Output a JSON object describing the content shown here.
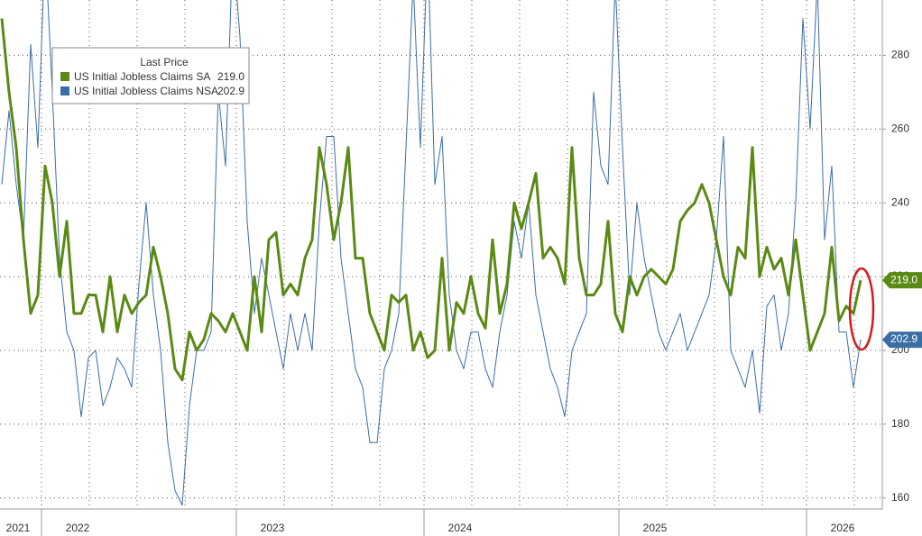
{
  "chart_data": {
    "type": "line",
    "legend_title": "Last Price",
    "categories": [
      "2021",
      null,
      null,
      null,
      null,
      null,
      "2022",
      null,
      null,
      null,
      null,
      null,
      null,
      null,
      null,
      null,
      null,
      null,
      null,
      null,
      null,
      null,
      null,
      null,
      null,
      null,
      null,
      null,
      null,
      null,
      null,
      null,
      null,
      "2023",
      null,
      null,
      null,
      null,
      null,
      null,
      null,
      null,
      null,
      null,
      null,
      null,
      null,
      null,
      null,
      null,
      null,
      null,
      null,
      null,
      null,
      null,
      null,
      null,
      null,
      "2024",
      null,
      null,
      null,
      null,
      null,
      null,
      null,
      null,
      null,
      null,
      null,
      null,
      null,
      null,
      null,
      null,
      null,
      null,
      null,
      null,
      null,
      null,
      null,
      null,
      null,
      null,
      "2025",
      null,
      null,
      null,
      null,
      null,
      null,
      null,
      null,
      null,
      null,
      null,
      null,
      null,
      null,
      null,
      null,
      null,
      null,
      null,
      null,
      null,
      null,
      null,
      null,
      null,
      "2026",
      null,
      null,
      null,
      null,
      null,
      null,
      null
    ],
    "series": [
      {
        "name": "US Initial Jobless Claims SA",
        "color": "#5a8a14",
        "last_value_label": "219.0",
        "values": [
          290,
          270,
          255,
          230,
          210,
          215,
          250,
          240,
          220,
          235,
          210,
          210,
          215,
          215,
          205,
          220,
          205,
          215,
          210,
          213,
          215,
          228,
          220,
          210,
          195,
          192,
          205,
          200,
          203,
          210,
          208,
          205,
          210,
          205,
          200,
          220,
          205,
          230,
          232,
          215,
          218,
          215,
          225,
          230,
          255,
          245,
          230,
          240,
          255,
          225,
          225,
          210,
          205,
          200,
          215,
          213,
          215,
          200,
          205,
          198,
          200,
          225,
          200,
          213,
          210,
          220,
          210,
          206,
          230,
          210,
          218,
          240,
          233,
          240,
          248,
          225,
          228,
          225,
          218,
          255,
          225,
          215,
          215,
          218,
          235,
          210,
          205,
          220,
          215,
          220,
          222,
          220,
          218,
          222,
          235,
          238,
          240,
          245,
          240,
          230,
          220,
          215,
          228,
          225,
          255,
          220,
          228,
          222,
          225,
          215,
          230,
          215,
          200,
          205,
          210,
          228,
          208,
          212,
          210,
          219
        ]
      },
      {
        "name": "US Initial Jobless Claims NSA",
        "color": "#3a6ea5",
        "last_value_label": "202.9",
        "values": [
          245,
          265,
          245,
          230,
          283,
          255,
          310,
          270,
          225,
          205,
          200,
          182,
          198,
          200,
          185,
          190,
          198,
          195,
          190,
          218,
          240,
          215,
          200,
          175,
          162,
          158,
          185,
          200,
          200,
          205,
          270,
          250,
          310,
          285,
          235,
          210,
          225,
          215,
          205,
          195,
          210,
          200,
          210,
          200,
          235,
          258,
          258,
          225,
          210,
          195,
          190,
          175,
          175,
          195,
          200,
          210,
          255,
          300,
          255,
          310,
          245,
          258,
          215,
          200,
          195,
          205,
          205,
          195,
          190,
          205,
          215,
          235,
          225,
          240,
          215,
          205,
          195,
          190,
          182,
          200,
          205,
          210,
          270,
          250,
          245,
          300,
          255,
          215,
          240,
          225,
          215,
          205,
          200,
          205,
          210,
          200,
          205,
          210,
          215,
          230,
          258,
          200,
          195,
          190,
          200,
          183,
          212,
          215,
          200,
          210,
          240,
          290,
          260,
          300,
          230,
          250,
          205,
          205,
          190,
          202.9
        ]
      }
    ],
    "ylim": [
      157,
      295
    ],
    "yticks": [
      160,
      180,
      200,
      220,
      240,
      260,
      280
    ],
    "grid": true
  }
}
